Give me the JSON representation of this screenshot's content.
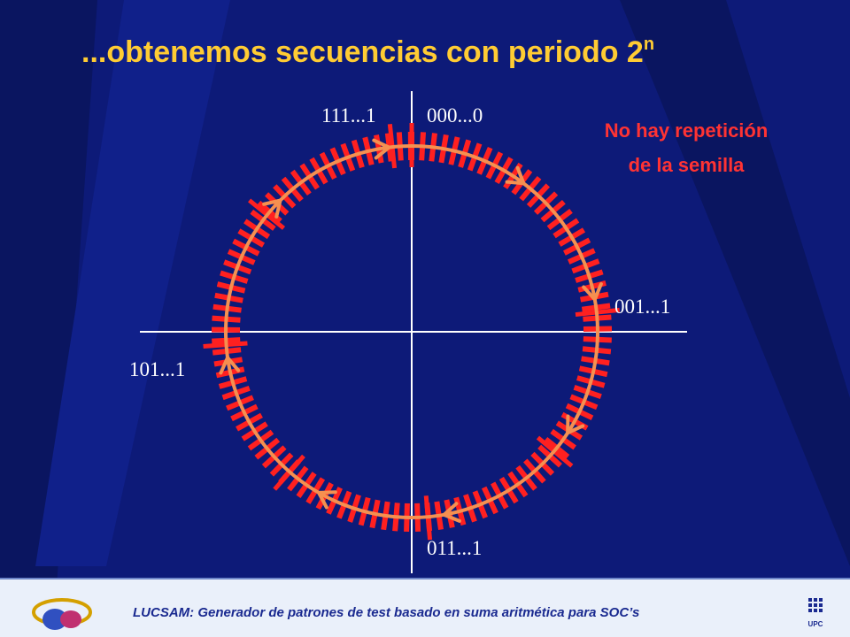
{
  "header": {
    "title": "...obtenemos secuencias con periodo 2",
    "title_sup": "n"
  },
  "labels": {
    "top_left": "111...1",
    "top_right": "000...0",
    "right": "001...1",
    "left": "101...1",
    "bottom": "011...1"
  },
  "annotation": {
    "line1": "No hay repetición",
    "line2": "de la semilla"
  },
  "footer": {
    "text": "LUCSAM: Generador de patrones de test basado en suma aritmética para SOC’s",
    "logo": "UPC"
  }
}
